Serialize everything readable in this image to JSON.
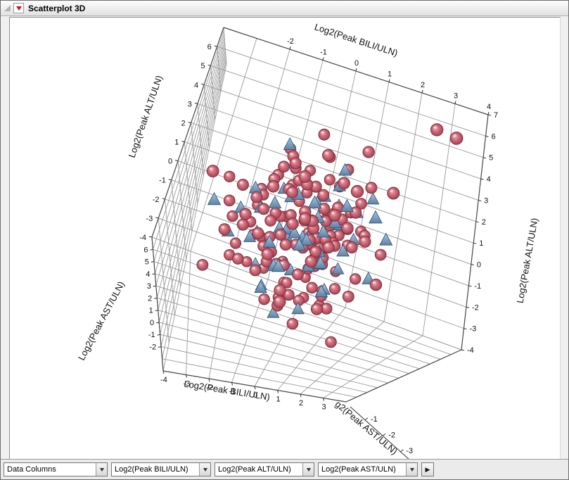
{
  "window": {
    "title": "Scatterplot 3D"
  },
  "controls": {
    "data_columns_label": "Data Columns",
    "combos": [
      "Log2(Peak BILI/ULN)",
      "Log2(Peak ALT/ULN)",
      "Log2(Peak AST/ULN)"
    ],
    "next_button_glyph": "▶"
  },
  "colors": {
    "sphere_fill": "#d2707e",
    "sphere_edge": "#7c2a38",
    "triangle_fill": "#7f9fbe",
    "triangle_edge": "#2f5a82",
    "grid": "#9a9a9a",
    "box_edge": "#4a4a4a"
  },
  "chart_data": {
    "type": "scatter",
    "projection": "3d",
    "grid": true,
    "axes": {
      "x": {
        "label": "Log2(Peak BILI/ULN)",
        "range": [
          -4,
          4
        ],
        "ticks_top": [
          -2,
          -1,
          0,
          1,
          2,
          3,
          4
        ],
        "ticks_bottom": [
          -4,
          -3,
          -2,
          -1,
          0,
          1,
          2,
          3
        ]
      },
      "y": {
        "label": "Log2(Peak ALT/ULN)",
        "range": [
          -4,
          7
        ],
        "ticks_left": [
          6,
          5,
          4,
          3,
          2,
          1,
          0,
          -1,
          -2,
          -3,
          -4
        ],
        "ticks_right": [
          7,
          6,
          5,
          4,
          3,
          2,
          1,
          0,
          -1,
          -2,
          -3,
          -4
        ]
      },
      "z": {
        "label": "Log2(Peak AST/ULN)",
        "label_clipped": "g2(Peak AST/ULN)",
        "range": [
          -4,
          7
        ],
        "ticks_left": [
          6,
          5,
          4,
          3,
          2,
          1,
          0,
          -1,
          -2
        ],
        "ticks_right": [
          -1,
          -2,
          -3
        ]
      }
    },
    "series": [
      {
        "name": "spheres",
        "marker": "sphere",
        "points": [
          [
            -0.2,
            0.1,
            1.2
          ],
          [
            0.4,
            -0.6,
            0.8
          ],
          [
            -1.1,
            0.9,
            1.9
          ],
          [
            0.1,
            1.4,
            0.3
          ],
          [
            -0.7,
            -1.2,
            2.1
          ],
          [
            0.9,
            0.5,
            1.6
          ],
          [
            -1.6,
            0.2,
            0.5
          ],
          [
            0.2,
            2.1,
            2.4
          ],
          [
            -0.4,
            -0.3,
            -0.2
          ],
          [
            1.1,
            1.0,
            1.1
          ],
          [
            -0.9,
            1.8,
            2.8
          ],
          [
            0.6,
            -1.5,
            1.4
          ],
          [
            -2.1,
            -0.5,
            1.0
          ],
          [
            0.0,
            0.7,
            3.1
          ],
          [
            -0.6,
            2.6,
            1.5
          ],
          [
            1.4,
            -0.2,
            0.1
          ],
          [
            -1.3,
            -1.8,
            2.3
          ],
          [
            0.3,
            0.9,
            -0.8
          ],
          [
            -0.1,
            -2.2,
            1.8
          ],
          [
            0.8,
            1.9,
            0.6
          ],
          [
            -1.8,
            1.1,
            2.6
          ],
          [
            0.5,
            0.0,
            2.0
          ],
          [
            -0.3,
            3.2,
            1.2
          ],
          [
            1.7,
            0.6,
            2.9
          ],
          [
            -1.0,
            -0.9,
            0.2
          ],
          [
            0.7,
            2.8,
            1.8
          ],
          [
            -2.4,
            0.4,
            1.4
          ],
          [
            0.2,
            -1.1,
            3.4
          ],
          [
            -0.5,
            1.5,
            -0.5
          ],
          [
            1.0,
            -2.0,
            1.0
          ],
          [
            -1.4,
            2.2,
            2.1
          ],
          [
            0.4,
            0.3,
            0.9
          ],
          [
            -0.8,
            -2.6,
            1.6
          ],
          [
            1.2,
            1.6,
            3.2
          ],
          [
            -0.2,
            0.8,
            2.5
          ],
          [
            0.6,
            -0.4,
            -1.2
          ],
          [
            -1.9,
            -1.4,
            1.9
          ],
          [
            0.1,
            1.2,
            1.4
          ],
          [
            -0.6,
            0.1,
            3.8
          ],
          [
            1.5,
            2.4,
            1.7
          ],
          [
            -1.2,
            -0.2,
            0.7
          ],
          [
            0.8,
            3.5,
            2.2
          ],
          [
            -0.4,
            -3.0,
            2.4
          ],
          [
            0.9,
            0.8,
            0.0
          ],
          [
            -1.6,
            1.7,
            1.1
          ],
          [
            0.3,
            -0.8,
            2.7
          ],
          [
            -0.9,
            2.9,
            3.0
          ],
          [
            1.3,
            -1.3,
            1.5
          ],
          [
            -2.6,
            0.8,
            2.0
          ],
          [
            0.0,
            -0.1,
            1.7
          ],
          [
            -0.7,
            1.3,
            0.4
          ],
          [
            1.1,
            -2.4,
            2.1
          ],
          [
            -0.3,
            0.4,
            4.1
          ],
          [
            0.7,
            1.8,
            -0.3
          ],
          [
            -1.1,
            3.8,
            1.3
          ],
          [
            0.5,
            -1.7,
            0.5
          ],
          [
            -1.5,
            -0.6,
            3.3
          ],
          [
            1.8,
            1.1,
            1.9
          ],
          [
            -0.1,
            2.3,
            2.6
          ],
          [
            0.4,
            0.6,
            1.2
          ],
          [
            -0.8,
            0.0,
            2.2
          ],
          [
            1.6,
            3.0,
            2.5
          ],
          [
            -2.2,
            -1.1,
            1.2
          ],
          [
            0.2,
            1.0,
            0.1
          ],
          [
            -0.5,
            -2.8,
            3.6
          ],
          [
            1.0,
            1.5,
            1.8
          ],
          [
            -1.3,
            0.6,
            -0.9
          ],
          [
            0.6,
            2.5,
            3.9
          ],
          [
            -0.2,
            -1.5,
            1.1
          ],
          [
            0.9,
            0.2,
            2.3
          ],
          [
            -1.7,
            2.0,
            0.8
          ],
          [
            0.3,
            -0.5,
            3.0
          ],
          [
            -0.6,
            1.1,
            1.6
          ],
          [
            1.2,
            -0.9,
            -0.6
          ],
          [
            -1.0,
            3.3,
            2.4
          ],
          [
            0.1,
            0.5,
            2.8
          ],
          [
            -2.0,
            -0.3,
            2.9
          ],
          [
            0.8,
            1.4,
            0.6
          ],
          [
            -0.3,
            -1.9,
            0.3
          ],
          [
            0.5,
            0.9,
            4.3
          ],
          [
            -1.4,
            1.5,
            3.5
          ],
          [
            1.9,
            -0.6,
            1.3
          ],
          [
            -0.7,
            2.7,
            0.0
          ],
          [
            0.2,
            -3.4,
            2.0
          ],
          [
            -1.8,
            0.3,
            1.7
          ],
          [
            0.7,
            1.7,
            2.7
          ],
          [
            -0.1,
            -0.7,
            -1.5
          ],
          [
            1.4,
            2.2,
            0.4
          ],
          [
            -1.1,
            -1.6,
            4.0
          ],
          [
            0.6,
            0.4,
            2.1
          ],
          [
            -2.8,
            1.9,
            1.5
          ],
          [
            0.0,
            3.6,
            3.3
          ],
          [
            -0.9,
            -0.4,
            0.9
          ],
          [
            1.0,
            0.7,
            3.7
          ],
          [
            -0.4,
            1.9,
            1.0
          ],
          [
            1.6,
            -1.8,
            2.6
          ],
          [
            -1.5,
            0.8,
            2.3
          ],
          [
            0.3,
            -2.1,
            1.2
          ],
          [
            -0.6,
            2.1,
            4.4
          ],
          [
            0.9,
            -0.1,
            0.2
          ],
          [
            -2.3,
            1.4,
            2.7
          ],
          [
            0.5,
            1.2,
            1.9
          ],
          [
            -1.0,
            -1.0,
            1.4
          ],
          [
            1.3,
            0.4,
            2.2
          ],
          [
            -0.2,
            2.4,
            0.7
          ],
          [
            0.7,
            -2.9,
            3.1
          ],
          [
            -1.6,
            -0.8,
            0.1
          ],
          [
            0.1,
            0.1,
            2.4
          ],
          [
            -0.8,
            1.6,
            3.2
          ],
          [
            1.7,
            1.3,
            1.6
          ],
          [
            -1.2,
            0.5,
            2.0
          ],
          [
            0.4,
            3.1,
            1.1
          ],
          [
            -0.5,
            -1.3,
            2.5
          ],
          [
            1.1,
            0.9,
            -1.0
          ],
          [
            -2.5,
            -0.7,
            2.8
          ],
          [
            0.2,
            0.2,
            1.5
          ],
          [
            -0.9,
            1.0,
            1.3
          ],
          [
            0.6,
            -0.3,
            3.5
          ],
          [
            -1.3,
            2.5,
            1.8
          ],
          [
            0.8,
            0.0,
            0.8
          ],
          [
            2.8,
            5.8,
            5.5
          ],
          [
            3.3,
            5.6,
            6.2
          ],
          [
            1.2,
            4.3,
            3.2
          ],
          [
            -3.2,
            1.0,
            4.5
          ],
          [
            2.4,
            0.5,
            2.0
          ],
          [
            -0.5,
            -3.8,
            4.8
          ],
          [
            2.0,
            2.6,
            4.6
          ],
          [
            -2.9,
            -2.2,
            2.2
          ],
          [
            1.5,
            -3.6,
            1.8
          ],
          [
            2.2,
            -1.2,
            3.4
          ],
          [
            -0.2,
            4.6,
            2.3
          ],
          [
            0.9,
            2.0,
            5.2
          ],
          [
            -0.6,
            0.6,
            0.5
          ],
          [
            0.3,
            1.5,
            2.6
          ],
          [
            -1.1,
            -0.1,
            1.8
          ],
          [
            0.8,
            0.8,
            1.4
          ],
          [
            -0.4,
            2.2,
            2.9
          ],
          [
            1.2,
            1.1,
            2.1
          ],
          [
            -1.7,
            1.2,
            1.2
          ],
          [
            0.0,
            -1.4,
            2.2
          ],
          [
            -0.8,
            3.0,
            1.7
          ],
          [
            1.4,
            0.3,
            2.5
          ],
          [
            -0.3,
            0.9,
            3.4
          ],
          [
            0.5,
            -0.7,
            1.7
          ],
          [
            -1.2,
            2.8,
            2.2
          ],
          [
            0.7,
            0.6,
            0.4
          ],
          [
            -2.0,
            0.1,
            3.1
          ],
          [
            1.0,
            -1.6,
            1.0
          ],
          [
            -0.6,
            -0.5,
            2.7
          ],
          [
            0.2,
            3.9,
            1.6
          ]
        ]
      },
      {
        "name": "triangles",
        "marker": "triangle",
        "points": [
          [
            -0.5,
            0.3,
            1.0
          ],
          [
            0.3,
            -0.8,
            1.7
          ],
          [
            -1.2,
            1.2,
            2.2
          ],
          [
            0.6,
            0.7,
            0.5
          ],
          [
            -0.8,
            -1.5,
            2.6
          ],
          [
            1.0,
            1.3,
            1.5
          ],
          [
            -1.7,
            -0.2,
            1.3
          ],
          [
            0.1,
            1.8,
            2.0
          ],
          [
            -0.3,
            -0.5,
            0.2
          ],
          [
            0.8,
            -1.9,
            2.4
          ],
          [
            -1.4,
            2.3,
            1.1
          ],
          [
            0.4,
            0.4,
            3.0
          ],
          [
            -2.2,
            0.7,
            1.8
          ],
          [
            0.0,
            0.0,
            2.5
          ],
          [
            -0.7,
            2.0,
            0.8
          ],
          [
            1.3,
            -0.4,
            1.2
          ],
          [
            -1.0,
            -2.3,
            1.9
          ],
          [
            0.7,
            1.0,
            2.8
          ],
          [
            -0.2,
            -1.1,
            1.5
          ],
          [
            0.9,
            2.2,
            1.0
          ],
          [
            -1.5,
            0.5,
            0.0
          ],
          [
            0.5,
            -0.2,
            2.1
          ],
          [
            -0.6,
            1.6,
            3.1
          ],
          [
            1.5,
            0.8,
            1.8
          ],
          [
            -1.1,
            -0.7,
            2.9
          ],
          [
            0.2,
            0.9,
            1.3
          ],
          [
            -0.9,
            3.1,
            2.0
          ],
          [
            1.1,
            -1.2,
            0.6
          ],
          [
            -0.4,
            0.2,
            2.3
          ],
          [
            0.6,
            2.6,
            2.7
          ],
          [
            -1.9,
            1.5,
            2.4
          ],
          [
            0.3,
            -2.6,
            1.6
          ],
          [
            -0.6,
            0.6,
            1.1
          ],
          [
            0.9,
            1.7,
            3.3
          ],
          [
            -1.3,
            -0.9,
            0.4
          ],
          [
            0.1,
            0.3,
            1.9
          ],
          [
            -0.7,
            -1.8,
            3.5
          ],
          [
            1.2,
            0.1,
            2.2
          ],
          [
            -1.6,
            1.0,
            1.6
          ],
          [
            0.4,
            2.4,
            0.9
          ],
          [
            -0.2,
            -0.4,
            2.8
          ],
          [
            0.8,
            0.5,
            -0.4
          ],
          [
            -1.0,
            2.1,
            1.4
          ],
          [
            0.5,
            -1.0,
            3.2
          ],
          [
            -2.4,
            -0.5,
            2.1
          ],
          [
            0.2,
            1.1,
            2.4
          ],
          [
            -0.8,
            0.8,
            0.3
          ],
          [
            1.4,
            1.9,
            2.0
          ],
          [
            2.1,
            -0.8,
            2.5
          ],
          [
            -0.4,
            -2.9,
            1.2
          ],
          [
            1.7,
            1.4,
            4.1
          ],
          [
            -1.2,
            3.6,
            2.9
          ],
          [
            0.6,
            -0.6,
            1.8
          ],
          [
            -0.1,
            1.3,
            3.7
          ],
          [
            -3.0,
            0.2,
            3.3
          ],
          [
            0.7,
            3.4,
            2.3
          ],
          [
            1.9,
            2.8,
            1.3
          ],
          [
            -0.9,
            -1.3,
            -0.7
          ],
          [
            0.0,
            0.6,
            0.7
          ],
          [
            2.3,
            0.9,
            3.0
          ]
        ]
      }
    ]
  }
}
